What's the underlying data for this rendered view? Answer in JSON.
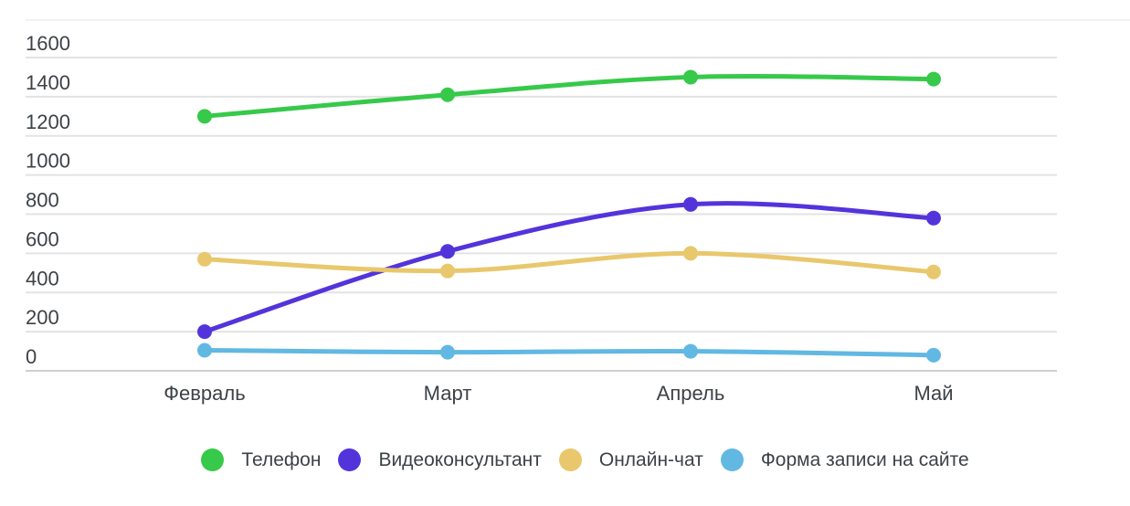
{
  "chart_data": {
    "type": "line",
    "title": "",
    "categories": [
      "Февраль",
      "Март",
      "Апрель",
      "Май"
    ],
    "series": [
      {
        "name": "Телефон",
        "color": "#36c94a",
        "values": [
          1300,
          1410,
          1500,
          1490
        ]
      },
      {
        "name": "Видеоконсультант",
        "color": "#5334db",
        "values": [
          200,
          610,
          850,
          780
        ]
      },
      {
        "name": "Онлайн-чат",
        "color": "#e9c76c",
        "values": [
          570,
          510,
          600,
          505
        ]
      },
      {
        "name": "Форма записи на сайте",
        "color": "#61b8e2",
        "values": [
          105,
          95,
          100,
          80
        ]
      }
    ],
    "xlabel": "",
    "ylabel": "",
    "ylim": [
      0,
      1600
    ],
    "yticks": [
      0,
      200,
      400,
      600,
      800,
      1000,
      1200,
      1400,
      1600
    ],
    "grid": true,
    "legend_position": "bottom"
  },
  "colors": {
    "text": "#3d4247",
    "gridline": "#e3e3e3",
    "axis_line": "#cfcfcf",
    "background": "#ffffff"
  }
}
